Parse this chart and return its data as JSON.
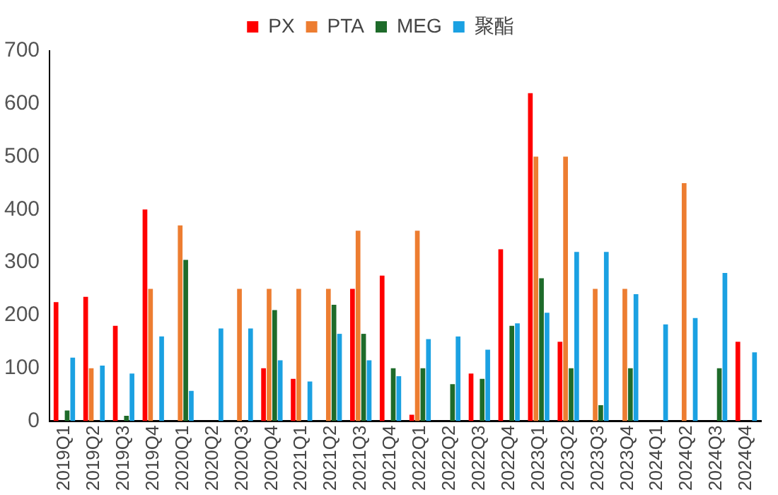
{
  "chart_data": {
    "type": "bar",
    "categories": [
      "2019Q1",
      "2019Q2",
      "2019Q3",
      "2019Q4",
      "2020Q1",
      "2020Q2",
      "2020Q3",
      "2020Q4",
      "2021Q1",
      "2021Q2",
      "2021Q3",
      "2021Q4",
      "2022Q1",
      "2022Q2",
      "2022Q3",
      "2022Q4",
      "2023Q1",
      "2023Q2",
      "2023Q3",
      "2023Q4",
      "2024Q1",
      "2024Q2",
      "2024Q3",
      "2024Q4"
    ],
    "series": [
      {
        "name": "PX",
        "color": "#ff0000",
        "values": [
          225,
          235,
          180,
          400,
          null,
          null,
          null,
          100,
          80,
          null,
          250,
          275,
          12,
          null,
          90,
          325,
          620,
          150,
          null,
          null,
          null,
          null,
          null,
          150
        ]
      },
      {
        "name": "PTA",
        "color": "#ed7d31",
        "values": [
          null,
          100,
          null,
          250,
          370,
          null,
          250,
          250,
          250,
          250,
          360,
          null,
          360,
          null,
          null,
          null,
          500,
          500,
          250,
          250,
          null,
          450,
          null,
          null
        ]
      },
      {
        "name": "MEG",
        "color": "#1e6b2a",
        "values": [
          20,
          null,
          10,
          null,
          305,
          null,
          null,
          210,
          null,
          220,
          165,
          100,
          100,
          70,
          80,
          180,
          270,
          100,
          30,
          100,
          null,
          null,
          100,
          null
        ]
      },
      {
        "name": "聚酯",
        "color": "#1ba1e2",
        "values": [
          120,
          105,
          90,
          160,
          57,
          175,
          175,
          115,
          75,
          165,
          115,
          85,
          155,
          160,
          135,
          185,
          205,
          320,
          320,
          240,
          183,
          195,
          280,
          130
        ]
      }
    ],
    "ylim": [
      0,
      700
    ],
    "yticks": [
      0,
      100,
      200,
      300,
      400,
      500,
      600,
      700
    ],
    "grid": false,
    "legend": "top"
  }
}
